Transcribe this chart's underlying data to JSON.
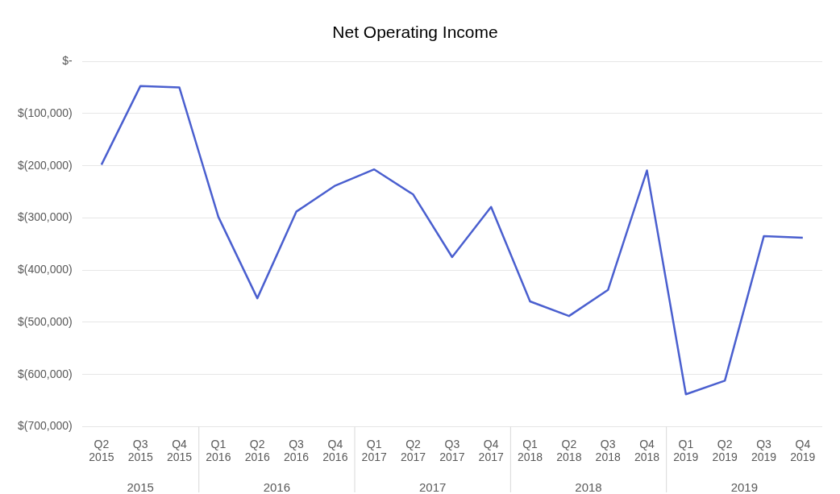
{
  "chart_data": {
    "type": "line",
    "title": "Net Operating Income",
    "categories": [
      "Q2 2015",
      "Q3 2015",
      "Q4 2015",
      "Q1 2016",
      "Q2 2016",
      "Q3 2016",
      "Q4 2016",
      "Q1 2017",
      "Q2 2017",
      "Q3 2017",
      "Q4 2017",
      "Q1 2018",
      "Q2 2018",
      "Q3 2018",
      "Q4 2018",
      "Q1 2019",
      "Q2 2019",
      "Q3 2019",
      "Q4 2019"
    ],
    "series": [
      {
        "color": "#4a5fcf",
        "values": [
          -198000,
          -47000,
          -50000,
          -298000,
          -454000,
          -288000,
          -238000,
          -207000,
          -255000,
          -375000,
          -279000,
          -460000,
          -488000,
          -438000,
          -209000,
          -638000,
          -612000,
          -335000,
          -338000
        ]
      }
    ],
    "ylim": [
      -700000,
      0
    ],
    "yticks": [
      {
        "value": -700000,
        "label": "$(700,000)"
      },
      {
        "value": -600000,
        "label": "$(600,000)"
      },
      {
        "value": -500000,
        "label": "$(500,000)"
      },
      {
        "value": -400000,
        "label": "$(400,000)"
      },
      {
        "value": -300000,
        "label": "$(300,000)"
      },
      {
        "value": -200000,
        "label": "$(200,000)"
      },
      {
        "value": -100000,
        "label": "$(100,000)"
      },
      {
        "value": 0,
        "label": "$-"
      }
    ],
    "annotations": [
      "2015",
      "2016",
      "2017",
      "2018",
      "2019"
    ],
    "grid": "y",
    "marker": "none",
    "line_style": "solid",
    "legend": false
  }
}
